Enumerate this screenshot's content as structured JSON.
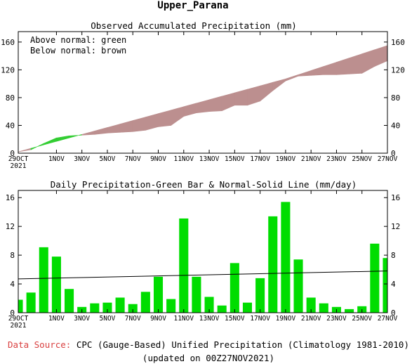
{
  "figure": {
    "title": "Upper_Parana",
    "footer": {
      "source_label": "Data Source:",
      "source_text": "CPC (Gauge-Based) Unified Precipitation (Climatology 1981-2010)",
      "updated": "(updated on 00Z27NOV2021)"
    },
    "colors": {
      "above": "#32cd32",
      "below": "#bc8f8f",
      "bar": "#00dd00",
      "line": "#000000",
      "source_label": "#d94040"
    }
  },
  "chart_data": [
    {
      "type": "area",
      "title": "Observed Accumulated Precipitation (mm)",
      "legend": [
        "Above normal: green",
        "Below normal: brown"
      ],
      "legend_position": "top-left",
      "ylim": [
        0,
        175
      ],
      "yticks": [
        0,
        40,
        80,
        120,
        160
      ],
      "xticks": [
        {
          "day": 0,
          "label": "29OCT",
          "year": "2021"
        },
        {
          "day": 3,
          "label": "1NOV"
        },
        {
          "day": 5,
          "label": "3NOV"
        },
        {
          "day": 7,
          "label": "5NOV"
        },
        {
          "day": 9,
          "label": "7NOV"
        },
        {
          "day": 11,
          "label": "9NOV"
        },
        {
          "day": 13,
          "label": "11NOV"
        },
        {
          "day": 15,
          "label": "13NOV"
        },
        {
          "day": 17,
          "label": "15NOV"
        },
        {
          "day": 19,
          "label": "17NOV"
        },
        {
          "day": 21,
          "label": "19NOV"
        },
        {
          "day": 23,
          "label": "21NOV"
        },
        {
          "day": 25,
          "label": "23NOV"
        },
        {
          "day": 27,
          "label": "25NOV"
        },
        {
          "day": 29,
          "label": "27NOV"
        }
      ],
      "grid": false,
      "series": [
        {
          "name": "Observed",
          "values": [
            2,
            5,
            14,
            22,
            25,
            26,
            27,
            29,
            30,
            31,
            33,
            38,
            40,
            53,
            58,
            60,
            61,
            69,
            69,
            75,
            90,
            104,
            111,
            112,
            113,
            113,
            114,
            115,
            125,
            133
          ]
        },
        {
          "name": "Normal",
          "values": [
            2,
            7,
            12,
            17,
            22,
            27,
            32,
            37,
            42,
            47,
            52,
            57,
            62,
            67,
            72,
            77,
            82,
            87,
            92,
            97,
            102,
            107,
            113,
            119,
            125,
            131,
            137,
            143,
            149,
            155
          ]
        }
      ]
    },
    {
      "type": "bar",
      "title": "Daily Precipitation-Green Bar & Normal-Solid Line (mm/day)",
      "ylim": [
        0,
        17
      ],
      "yticks": [
        0,
        4,
        8,
        12,
        16
      ],
      "grid": false,
      "series": [
        {
          "name": "Daily Precipitation",
          "values": [
            1.8,
            2.8,
            9.1,
            7.8,
            3.3,
            0.8,
            1.3,
            1.4,
            2.1,
            1.2,
            2.9,
            5.0,
            1.9,
            13.1,
            5.0,
            2.2,
            1.0,
            6.9,
            1.4,
            4.8,
            13.4,
            15.4,
            7.4,
            2.1,
            1.3,
            0.8,
            0.5,
            0.9,
            9.6,
            7.6
          ]
        },
        {
          "name": "Normal",
          "values": [
            4.7,
            5.8
          ]
        }
      ]
    }
  ]
}
